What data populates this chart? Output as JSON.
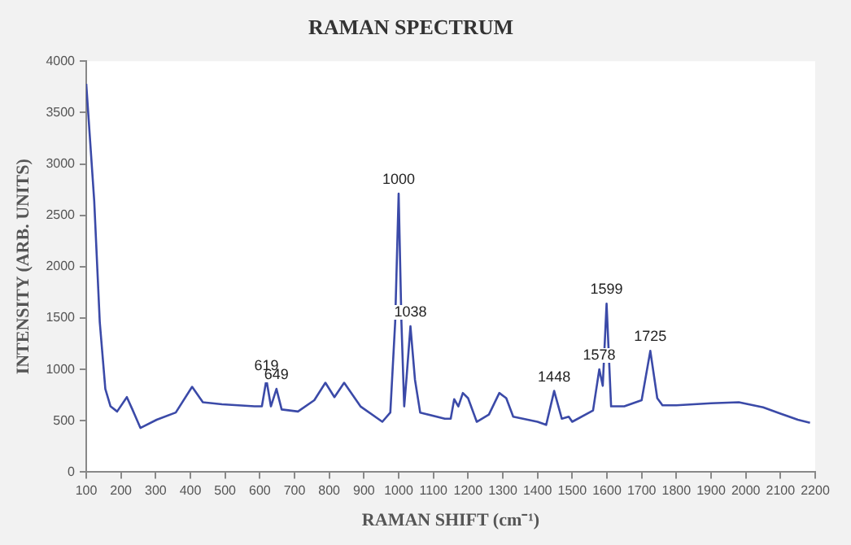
{
  "chart_data": {
    "type": "line",
    "title": "RAMAN SPECTRUM",
    "xlabel": "RAMAN SHIFT (cm⁻¹)",
    "ylabel": "INTENSITY (ARB. UNITS)",
    "series": [
      {
        "color": "#3b4aa8",
        "x": [
          100,
          123,
          139,
          155,
          170,
          189,
          217,
          233,
          256,
          303,
          358,
          405,
          436,
          491,
          585,
          606,
          619,
          632,
          648,
          663,
          710,
          757,
          789,
          815,
          843,
          890,
          953,
          976,
          990,
          1000,
          1008,
          1016,
          1023,
          1034,
          1047,
          1062,
          1133,
          1150,
          1160,
          1172,
          1185,
          1200,
          1225,
          1260,
          1290,
          1310,
          1330,
          1400,
          1425,
          1448,
          1470,
          1490,
          1500,
          1560,
          1578,
          1588,
          1599,
          1612,
          1650,
          1700,
          1725,
          1745,
          1760,
          1800,
          1900,
          1980,
          2050,
          2100,
          2150,
          2185
        ],
        "values": [
          3780,
          2640,
          1460,
          810,
          640,
          590,
          730,
          610,
          430,
          510,
          580,
          830,
          680,
          660,
          640,
          640,
          900,
          640,
          810,
          610,
          590,
          700,
          870,
          730,
          870,
          640,
          490,
          580,
          1460,
          2710,
          1460,
          640,
          930,
          1420,
          900,
          580,
          520,
          520,
          710,
          640,
          770,
          720,
          490,
          560,
          770,
          720,
          540,
          490,
          460,
          790,
          520,
          540,
          490,
          600,
          1000,
          840,
          1640,
          640,
          640,
          700,
          1180,
          720,
          650,
          650,
          670,
          680,
          630,
          570,
          510,
          480
        ]
      }
    ],
    "xlim": [
      100,
      2200
    ],
    "xticks": [
      100,
      200,
      300,
      400,
      500,
      600,
      700,
      800,
      900,
      1000,
      1100,
      1200,
      1300,
      1400,
      1500,
      1600,
      1700,
      1800,
      1900,
      2000,
      2100,
      2200
    ],
    "ylim": [
      0,
      4000
    ],
    "yticks": [
      0,
      500,
      1000,
      1500,
      2000,
      2500,
      3000,
      3500,
      4000
    ],
    "grid": false,
    "legend": false,
    "marker": "none",
    "line_style": "solid",
    "annotations": [
      {
        "text": "619",
        "x": 619,
        "y": 900
      },
      {
        "text": "649",
        "x": 648,
        "y": 810
      },
      {
        "text": "1000",
        "x": 1000,
        "y": 2710
      },
      {
        "text": "1038",
        "x": 1034,
        "y": 1420
      },
      {
        "text": "1448",
        "x": 1448,
        "y": 790
      },
      {
        "text": "1578",
        "x": 1578,
        "y": 1000
      },
      {
        "text": "1599",
        "x": 1599,
        "y": 1640
      },
      {
        "text": "1725",
        "x": 1725,
        "y": 1180
      }
    ]
  }
}
